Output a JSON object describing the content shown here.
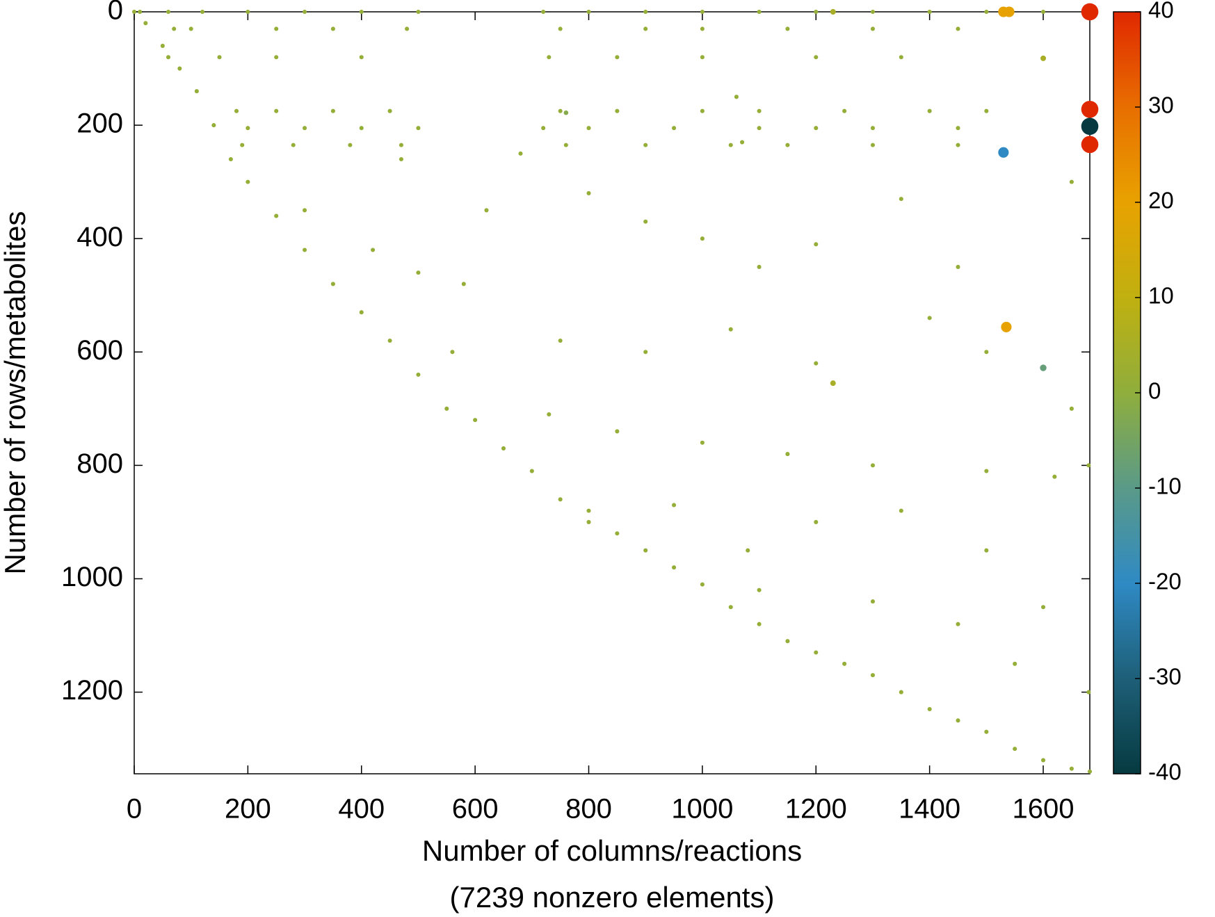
{
  "chart_data": {
    "type": "scatter",
    "xlabel": "Number of columns/reactions",
    "xlabel2": "(7239 nonzero elements)",
    "ylabel": "Number of rows/metabolites",
    "xlim": [
      0,
      1682
    ],
    "ylim": [
      1344,
      0
    ],
    "xticks": [
      0,
      200,
      400,
      600,
      800,
      1000,
      1200,
      1400,
      1600
    ],
    "yticks": [
      0,
      200,
      400,
      600,
      800,
      1000,
      1200
    ],
    "colorbar": {
      "lim": [
        -40,
        40
      ],
      "ticks": [
        -40,
        -30,
        -20,
        -10,
        0,
        10,
        20,
        30,
        40
      ],
      "colormap": [
        "#063a40",
        "#1e5f78",
        "#2f8ac4",
        "#5a9a88",
        "#8fae3c",
        "#c0b010",
        "#e8a200",
        "#e86e00",
        "#e02800"
      ]
    },
    "series": [
      {
        "x": [
          0,
          20,
          50,
          80,
          110,
          140,
          170,
          200,
          250,
          300,
          350,
          400,
          450,
          500,
          550,
          600,
          650,
          700,
          750,
          800,
          850,
          900,
          950,
          1000,
          1050,
          1100,
          1150,
          1200,
          1250,
          1300,
          1350,
          1400,
          1450,
          1500,
          1550,
          1600,
          1650,
          1682,
          10,
          60,
          120,
          200,
          300,
          400,
          500,
          720,
          800,
          900,
          1000,
          1100,
          1200,
          1300,
          1400,
          1500,
          1600,
          70,
          100,
          250,
          350,
          480,
          750,
          900,
          1000,
          1150,
          1300,
          1450,
          60,
          150,
          250,
          400,
          730,
          850,
          1000,
          1200,
          1350,
          180,
          250,
          350,
          450,
          750,
          850,
          1000,
          1100,
          1250,
          1400,
          1500,
          200,
          300,
          400,
          500,
          720,
          800,
          950,
          1100,
          1200,
          1300,
          1450,
          190,
          280,
          380,
          470,
          760,
          900,
          1050,
          1150,
          1300,
          1450,
          300,
          420,
          500,
          800,
          900,
          1000,
          1100,
          1200,
          1350,
          1450,
          750,
          900,
          1050,
          1200,
          1400,
          1500,
          730,
          850,
          1000,
          1150,
          1300,
          1500,
          1620,
          800,
          950,
          1080,
          1200,
          1350,
          1500,
          1100,
          1300,
          1450,
          1550,
          1600,
          1680,
          580,
          560,
          620,
          470,
          680,
          1650,
          1680,
          1650,
          1070,
          1060,
          1530,
          1540,
          1682,
          1682,
          1682,
          1682,
          1530,
          1535,
          1600,
          1230,
          1230,
          1600,
          760
        ],
        "y": [
          0,
          20,
          60,
          100,
          140,
          200,
          260,
          300,
          360,
          420,
          480,
          530,
          580,
          640,
          700,
          720,
          770,
          810,
          860,
          880,
          920,
          950,
          980,
          1010,
          1050,
          1080,
          1110,
          1130,
          1150,
          1170,
          1200,
          1230,
          1250,
          1270,
          1300,
          1320,
          1335,
          1340,
          0,
          0,
          0,
          0,
          0,
          0,
          0,
          0,
          0,
          0,
          0,
          0,
          0,
          0,
          0,
          0,
          0,
          30,
          30,
          30,
          30,
          30,
          30,
          30,
          30,
          30,
          30,
          30,
          80,
          80,
          80,
          80,
          80,
          80,
          80,
          80,
          80,
          175,
          175,
          175,
          175,
          175,
          175,
          175,
          175,
          175,
          175,
          175,
          205,
          205,
          205,
          205,
          205,
          205,
          205,
          205,
          205,
          205,
          205,
          235,
          235,
          235,
          235,
          235,
          235,
          235,
          235,
          235,
          235,
          350,
          420,
          460,
          320,
          370,
          400,
          450,
          410,
          330,
          450,
          580,
          600,
          560,
          620,
          540,
          600,
          710,
          740,
          760,
          780,
          800,
          810,
          820,
          900,
          870,
          950,
          900,
          880,
          950,
          1020,
          1040,
          1080,
          1150,
          1050,
          1200,
          480,
          600,
          350,
          260,
          250,
          700,
          800,
          300,
          230,
          150,
          0,
          0,
          0,
          172,
          202,
          234,
          248,
          556,
          628,
          655,
          0,
          82,
          178
        ],
        "values": [
          1,
          1,
          1,
          1,
          1,
          1,
          1,
          1,
          1,
          1,
          1,
          1,
          1,
          1,
          1,
          1,
          1,
          1,
          1,
          1,
          1,
          1,
          1,
          1,
          1,
          1,
          1,
          1,
          1,
          1,
          1,
          1,
          1,
          1,
          1,
          1,
          1,
          1,
          1,
          1,
          1,
          1,
          1,
          1,
          1,
          1,
          1,
          1,
          1,
          1,
          1,
          1,
          1,
          1,
          1,
          1,
          1,
          1,
          1,
          1,
          1,
          1,
          1,
          1,
          1,
          1,
          1,
          1,
          1,
          1,
          1,
          1,
          1,
          1,
          1,
          1,
          1,
          1,
          1,
          1,
          1,
          1,
          1,
          1,
          1,
          1,
          1,
          1,
          1,
          1,
          1,
          1,
          1,
          1,
          1,
          1,
          1,
          1,
          1,
          1,
          1,
          1,
          1,
          1,
          1,
          1,
          1,
          1,
          1,
          1,
          1,
          1,
          1,
          1,
          1,
          1,
          1,
          1,
          1,
          1,
          1,
          1,
          1,
          1,
          1,
          1,
          1,
          1,
          1,
          1,
          1,
          1,
          1,
          1,
          1,
          1,
          1,
          1,
          1,
          1,
          1,
          1,
          1,
          1,
          1,
          1,
          1,
          1,
          1,
          1,
          1,
          1,
          20,
          20,
          40,
          40,
          -40,
          40,
          -20,
          20,
          -8,
          5,
          5,
          5,
          -2
        ]
      }
    ]
  }
}
